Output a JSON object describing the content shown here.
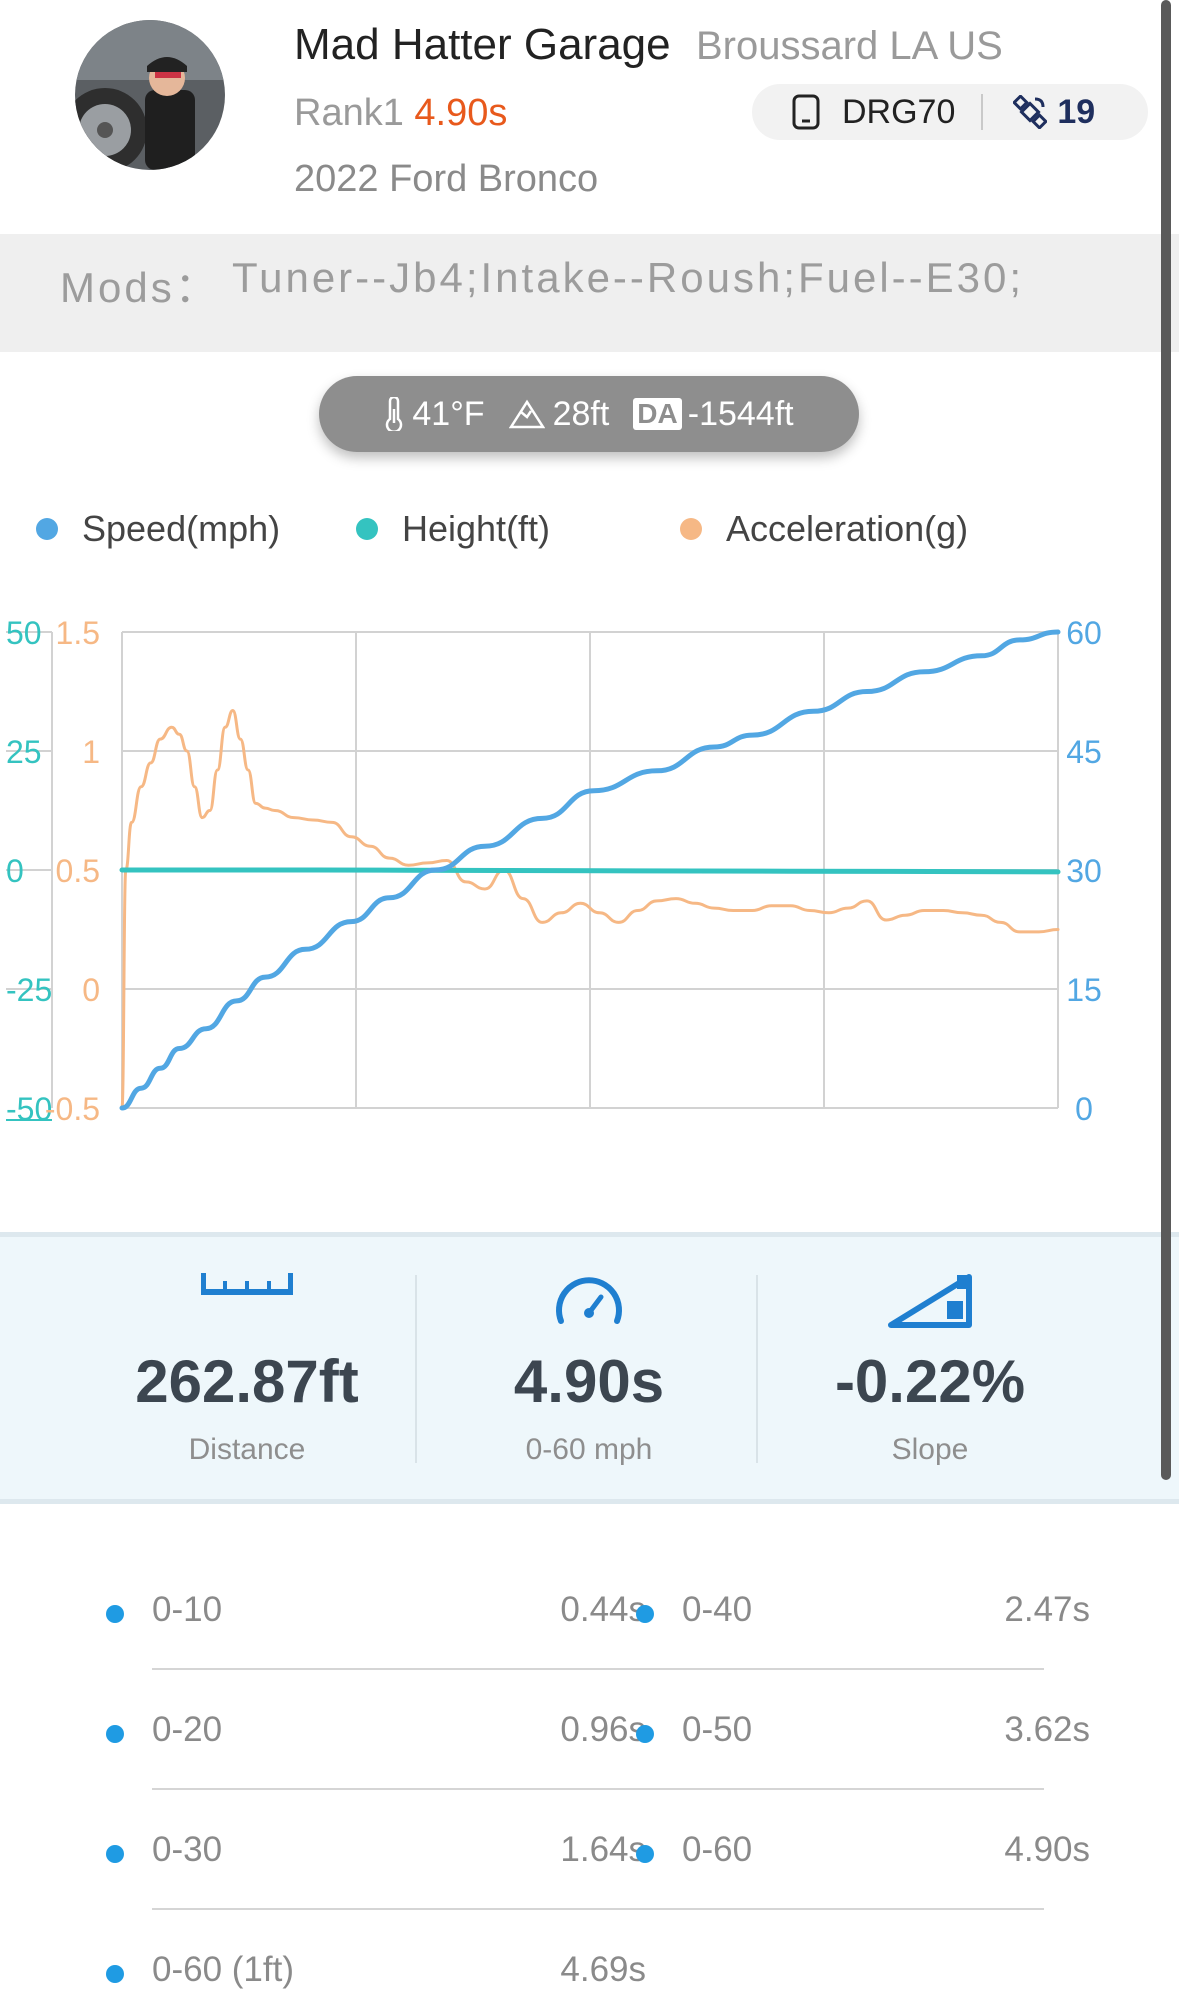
{
  "header": {
    "name": "Mad Hatter Garage",
    "location": "Broussard LA US",
    "rank_label": "Rank1",
    "rank_time": "4.90s",
    "vehicle": "2022 Ford Bronco",
    "device": {
      "icon": "device-icon",
      "name": "DRG70",
      "satellite_icon": "satellite-icon",
      "satellites": "19"
    }
  },
  "mods": {
    "label": "Mods：",
    "value": "Tuner--Jb4;Intake--Roush;Fuel--E30;"
  },
  "conditions": {
    "temperature": "41°F",
    "altitude": "28ft",
    "da_label": "DA",
    "density_altitude": "-1544ft"
  },
  "legend": [
    {
      "label": "Speed(mph)",
      "color": "#52a7e3"
    },
    {
      "label": "Height(ft)",
      "color": "#34c3c0"
    },
    {
      "label": "Acceleration(g)",
      "color": "#f6b885"
    }
  ],
  "chart_data": {
    "type": "line",
    "x_range": [
      0,
      4.9
    ],
    "grid": true,
    "axes": {
      "height": {
        "ticks": [
          "50",
          "25",
          "0",
          "-25",
          "-50"
        ],
        "range": [
          -50,
          50
        ],
        "color": "#34c3c0"
      },
      "acceleration": {
        "ticks": [
          "1.5",
          "1",
          "0.5",
          "0",
          "-0.5"
        ],
        "range": [
          -0.5,
          1.5
        ],
        "color": "#f6b885"
      },
      "speed": {
        "ticks": [
          "60",
          "45",
          "30",
          "15",
          "0"
        ],
        "range": [
          0,
          60
        ],
        "color": "#52a7e3"
      }
    },
    "series": [
      {
        "name": "Speed(mph)",
        "axis": "speed",
        "x": [
          0,
          0.1,
          0.2,
          0.3,
          0.44,
          0.6,
          0.75,
          0.96,
          1.2,
          1.4,
          1.64,
          1.9,
          2.2,
          2.47,
          2.8,
          3.1,
          3.3,
          3.62,
          3.9,
          4.2,
          4.5,
          4.7,
          4.9
        ],
        "values": [
          0,
          2.5,
          5,
          7.5,
          10,
          13.5,
          16.5,
          20,
          23.5,
          26.5,
          30,
          33,
          36.5,
          40,
          42.5,
          45.5,
          47,
          50,
          52.5,
          55,
          57,
          59,
          60
        ]
      },
      {
        "name": "Height(ft)",
        "axis": "height",
        "x": [
          0,
          1,
          2,
          3,
          4,
          4.9
        ],
        "values": [
          0,
          0,
          -0.1,
          -0.2,
          -0.3,
          -0.4
        ]
      },
      {
        "name": "Acceleration(g)",
        "axis": "acceleration",
        "x": [
          0,
          0.02,
          0.05,
          0.1,
          0.15,
          0.2,
          0.26,
          0.3,
          0.34,
          0.38,
          0.42,
          0.46,
          0.5,
          0.54,
          0.58,
          0.62,
          0.66,
          0.7,
          0.75,
          0.8,
          0.9,
          1.0,
          1.1,
          1.2,
          1.3,
          1.4,
          1.5,
          1.6,
          1.7,
          1.8,
          1.9,
          2.0,
          2.1,
          2.2,
          2.3,
          2.4,
          2.5,
          2.6,
          2.7,
          2.8,
          2.9,
          3.0,
          3.1,
          3.2,
          3.3,
          3.4,
          3.5,
          3.6,
          3.7,
          3.8,
          3.9,
          4.0,
          4.1,
          4.2,
          4.3,
          4.4,
          4.5,
          4.6,
          4.7,
          4.8,
          4.9
        ],
        "values": [
          -0.5,
          0.5,
          0.7,
          0.85,
          0.95,
          1.05,
          1.1,
          1.07,
          1.0,
          0.85,
          0.72,
          0.75,
          0.92,
          1.1,
          1.17,
          1.05,
          0.92,
          0.78,
          0.76,
          0.75,
          0.72,
          0.71,
          0.7,
          0.64,
          0.6,
          0.55,
          0.52,
          0.53,
          0.54,
          0.45,
          0.42,
          0.5,
          0.38,
          0.28,
          0.32,
          0.36,
          0.32,
          0.28,
          0.33,
          0.37,
          0.38,
          0.36,
          0.34,
          0.33,
          0.33,
          0.35,
          0.35,
          0.33,
          0.32,
          0.34,
          0.37,
          0.29,
          0.31,
          0.33,
          0.33,
          0.32,
          0.31,
          0.28,
          0.24,
          0.24,
          0.25
        ]
      }
    ]
  },
  "stats": [
    {
      "icon": "ruler-icon",
      "value": "262.87ft",
      "label": "Distance"
    },
    {
      "icon": "speedometer-icon",
      "value": "4.90s",
      "label": "0-60 mph"
    },
    {
      "icon": "slope-icon",
      "value": "-0.22%",
      "label": "Slope"
    }
  ],
  "splits": [
    {
      "label": "0-10",
      "time": "0.44s"
    },
    {
      "label": "0-40",
      "time": "2.47s"
    },
    {
      "label": "0-20",
      "time": "0.96s"
    },
    {
      "label": "0-50",
      "time": "3.62s"
    },
    {
      "label": "0-30",
      "time": "1.64s"
    },
    {
      "label": "0-60",
      "time": "4.90s"
    },
    {
      "label": "0-60 (1ft)",
      "time": "4.69s"
    }
  ]
}
